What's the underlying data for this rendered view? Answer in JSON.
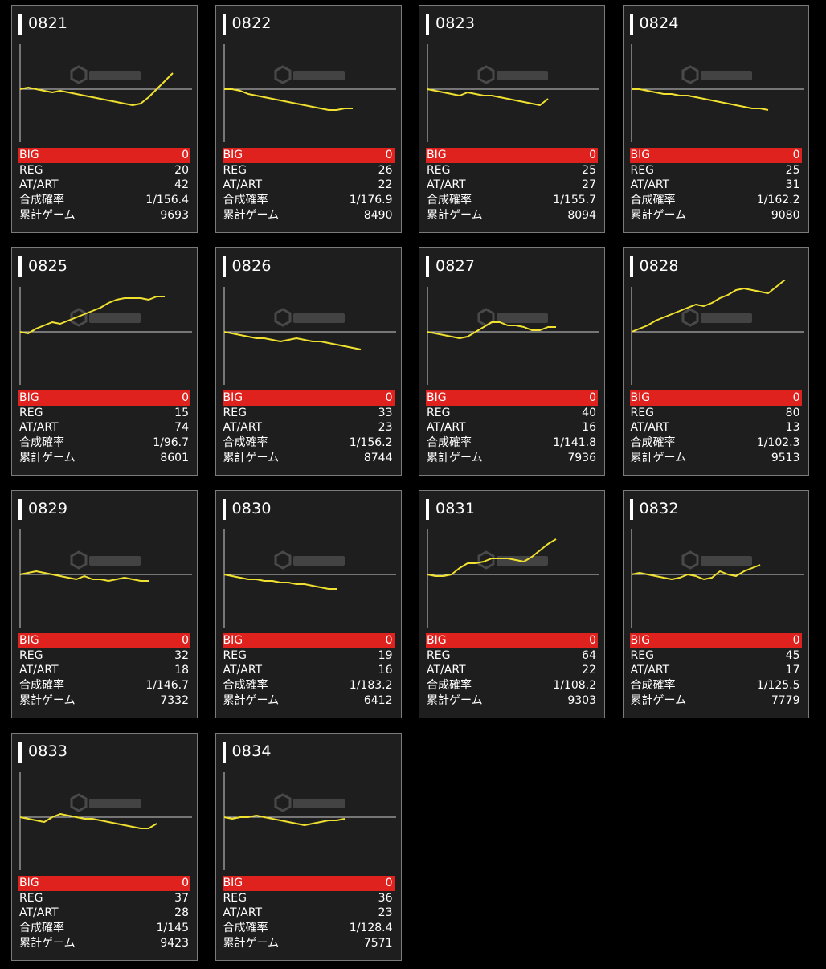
{
  "colors": {
    "background": "#000000",
    "card": "#1e1e1e",
    "line": "#f0e030",
    "big_bar": "#e0221e"
  },
  "stat_labels": {
    "big": "BIG",
    "reg": "REG",
    "at": "AT/ART",
    "prob": "合成確率",
    "games": "累計ゲーム"
  },
  "machines": [
    {
      "id": "0821",
      "big": "0",
      "reg": "20",
      "at": "42",
      "prob": "1/156.4",
      "games": "9693",
      "trend": [
        0,
        1,
        0,
        -1,
        -2,
        -1,
        -2,
        -3,
        -4,
        -5,
        -6,
        -7,
        -8,
        -9,
        -10,
        -9,
        -5,
        0,
        5,
        10
      ]
    },
    {
      "id": "0822",
      "big": "0",
      "reg": "26",
      "at": "22",
      "prob": "1/176.9",
      "games": "8490",
      "trend": [
        0,
        0,
        -1,
        -3,
        -4,
        -5,
        -6,
        -7,
        -8,
        -9,
        -10,
        -11,
        -12,
        -13,
        -13,
        -12,
        -12
      ]
    },
    {
      "id": "0823",
      "big": "0",
      "reg": "25",
      "at": "27",
      "prob": "1/155.7",
      "games": "8094",
      "trend": [
        0,
        -1,
        -2,
        -3,
        -4,
        -2,
        -3,
        -4,
        -4,
        -5,
        -6,
        -7,
        -8,
        -9,
        -10,
        -6
      ]
    },
    {
      "id": "0824",
      "big": "0",
      "reg": "25",
      "at": "31",
      "prob": "1/162.2",
      "games": "9080",
      "trend": [
        0,
        0,
        -1,
        -2,
        -3,
        -3,
        -4,
        -4,
        -5,
        -6,
        -7,
        -8,
        -9,
        -10,
        -11,
        -12,
        -12,
        -13
      ]
    },
    {
      "id": "0825",
      "big": "0",
      "reg": "15",
      "at": "74",
      "prob": "1/96.7",
      "games": "8601",
      "trend": [
        0,
        -1,
        2,
        4,
        6,
        5,
        7,
        9,
        11,
        13,
        15,
        18,
        20,
        21,
        21,
        21,
        20,
        22,
        22
      ]
    },
    {
      "id": "0826",
      "big": "0",
      "reg": "33",
      "at": "23",
      "prob": "1/156.2",
      "games": "8744",
      "trend": [
        0,
        -1,
        -2,
        -3,
        -4,
        -4,
        -5,
        -6,
        -5,
        -4,
        -5,
        -6,
        -6,
        -7,
        -8,
        -9,
        -10,
        -11
      ]
    },
    {
      "id": "0827",
      "big": "0",
      "reg": "40",
      "at": "16",
      "prob": "1/141.8",
      "games": "7936",
      "trend": [
        0,
        -1,
        -2,
        -3,
        -4,
        -3,
        0,
        3,
        6,
        6,
        4,
        4,
        3,
        1,
        1,
        3,
        3
      ]
    },
    {
      "id": "0828",
      "big": "0",
      "reg": "80",
      "at": "13",
      "prob": "1/102.3",
      "games": "9513",
      "trend": [
        0,
        2,
        4,
        7,
        9,
        11,
        13,
        15,
        17,
        16,
        18,
        21,
        23,
        26,
        27,
        26,
        25,
        24,
        28,
        32,
        36
      ]
    },
    {
      "id": "0829",
      "big": "0",
      "reg": "32",
      "at": "18",
      "prob": "1/146.7",
      "games": "7332",
      "trend": [
        0,
        1,
        2,
        1,
        0,
        -1,
        -2,
        -3,
        -1,
        -3,
        -3,
        -4,
        -3,
        -2,
        -3,
        -4,
        -4
      ]
    },
    {
      "id": "0830",
      "big": "0",
      "reg": "19",
      "at": "16",
      "prob": "1/183.2",
      "games": "6412",
      "trend": [
        0,
        -1,
        -2,
        -3,
        -3,
        -4,
        -4,
        -5,
        -5,
        -6,
        -6,
        -7,
        -8,
        -9,
        -9
      ]
    },
    {
      "id": "0831",
      "big": "0",
      "reg": "64",
      "at": "22",
      "prob": "1/108.2",
      "games": "9303",
      "trend": [
        0,
        -1,
        -1,
        0,
        4,
        7,
        7,
        8,
        10,
        10,
        10,
        9,
        8,
        11,
        15,
        19,
        22
      ]
    },
    {
      "id": "0832",
      "big": "0",
      "reg": "45",
      "at": "17",
      "prob": "1/125.5",
      "games": "7779",
      "trend": [
        0,
        1,
        0,
        -1,
        -2,
        -3,
        -2,
        0,
        -1,
        -3,
        -2,
        2,
        0,
        -1,
        2,
        4,
        6
      ]
    },
    {
      "id": "0833",
      "big": "0",
      "reg": "37",
      "at": "28",
      "prob": "1/145",
      "games": "9423",
      "trend": [
        0,
        -1,
        -2,
        -3,
        0,
        2,
        1,
        0,
        -1,
        -1,
        -2,
        -3,
        -4,
        -5,
        -6,
        -7,
        -7,
        -4
      ]
    },
    {
      "id": "0834",
      "big": "0",
      "reg": "36",
      "at": "23",
      "prob": "1/128.4",
      "games": "7571",
      "trend": [
        0,
        -1,
        0,
        0,
        1,
        0,
        -1,
        -2,
        -3,
        -4,
        -5,
        -4,
        -3,
        -2,
        -2,
        -1
      ]
    }
  ]
}
